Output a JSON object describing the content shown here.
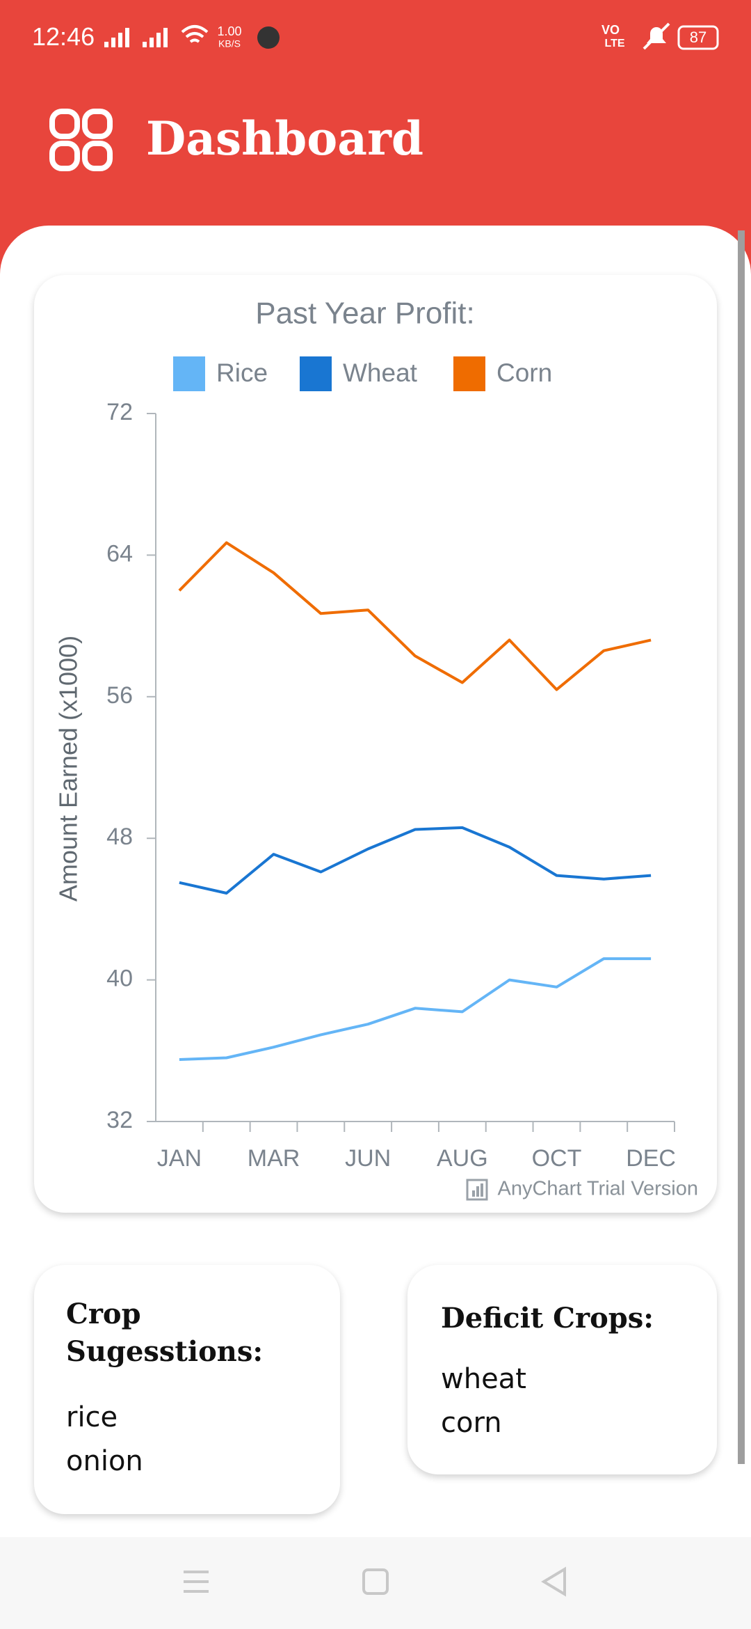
{
  "status_bar": {
    "time": "12:46",
    "speed": "1.00",
    "speed_unit": "KB/S",
    "network_top": "VO",
    "network_bottom": "LTE",
    "battery": "87"
  },
  "header": {
    "title": "Dashboard"
  },
  "chart_data": {
    "type": "line",
    "title": "Past Year Profit:",
    "y_label": "Amount Earned (x1000)",
    "categories": [
      "JAN",
      null,
      "MAR",
      null,
      "JUN",
      null,
      "AUG",
      null,
      "OCT",
      null,
      "DEC"
    ],
    "series": [
      {
        "name": "Rice",
        "color": "#64b5f6",
        "values": [
          35.5,
          35.6,
          36.2,
          36.9,
          37.5,
          38.4,
          38.2,
          40.0,
          39.6,
          41.2,
          41.2
        ]
      },
      {
        "name": "Wheat",
        "color": "#1976d2",
        "values": [
          45.5,
          44.9,
          47.1,
          46.1,
          47.4,
          48.5,
          48.6,
          47.5,
          45.9,
          45.7,
          45.9
        ]
      },
      {
        "name": "Corn",
        "color": "#ef6c00",
        "values": [
          62.0,
          64.7,
          63.0,
          60.7,
          60.9,
          58.3,
          56.8,
          59.2,
          56.4,
          58.6,
          59.2
        ]
      }
    ],
    "ylim": [
      32,
      72
    ],
    "yticks": [
      32,
      40,
      48,
      56,
      64,
      72
    ],
    "grid": false,
    "legend": "top",
    "watermark": "AnyChart Trial Version"
  },
  "cards": [
    {
      "title": "Crop Sugesstions:",
      "items": [
        "rice",
        "onion"
      ]
    },
    {
      "title": "Deficit Crops:",
      "items": [
        "wheat",
        "corn"
      ]
    }
  ]
}
